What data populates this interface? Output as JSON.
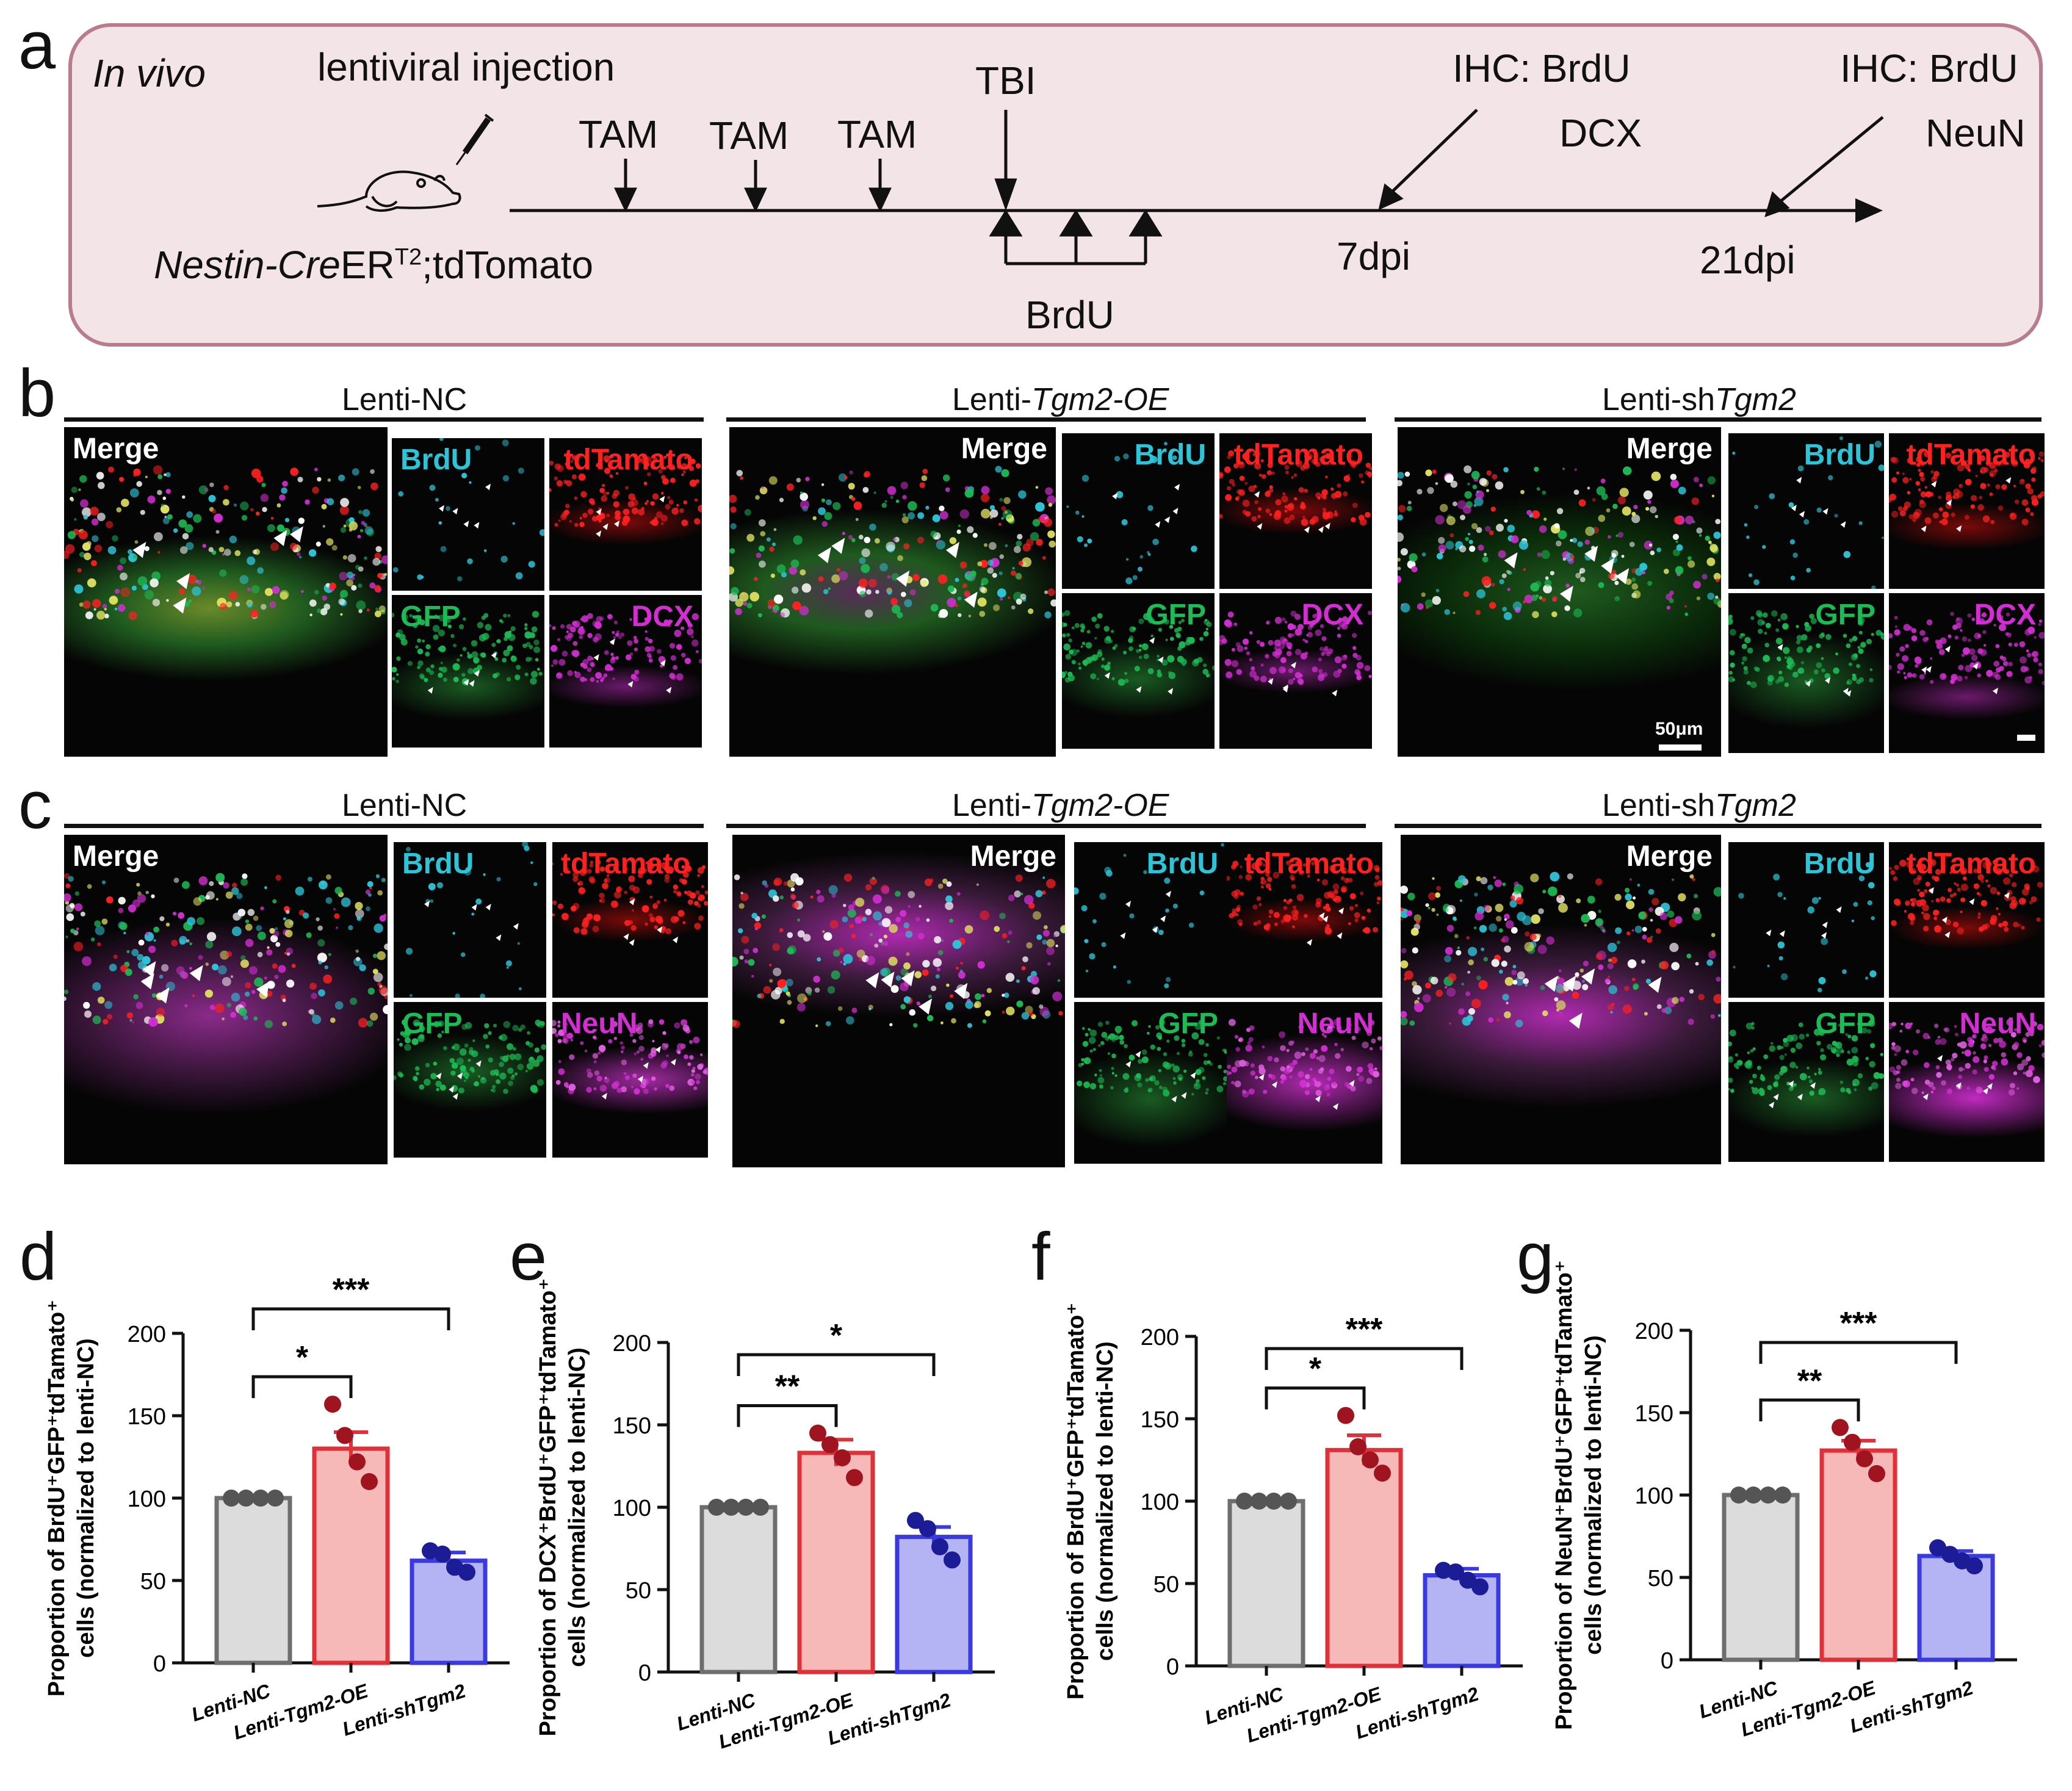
{
  "panel_labels": {
    "a": "a",
    "b": "b",
    "c": "c",
    "d": "d",
    "e": "e",
    "f": "f",
    "g": "g"
  },
  "timeline": {
    "in_vivo": "In vivo",
    "injection": "lentiviral injection",
    "tam": [
      "TAM",
      "TAM",
      "TAM"
    ],
    "tbi": "TBI",
    "ihc1_a": "IHC: BrdU",
    "ihc1_b": "DCX",
    "ihc2_a": "IHC: BrdU",
    "ihc2_b": "NeuN",
    "mouse_italic": "Nestin-Cre",
    "mouse_er": "ER",
    "mouse_sup": "T2",
    "mouse_rest": ";tdTomato",
    "brdu": "BrdU",
    "dpi7": "7dpi",
    "dpi21": "21dpi"
  },
  "groups": {
    "nc": "Lenti-NC",
    "oe_pre": "Lenti-",
    "oe_italic": "Tgm2-OE",
    "sh_pre": "Lenti-sh",
    "sh_italic": "Tgm2"
  },
  "channels": {
    "merge": "Merge",
    "brdu": "BrdU",
    "tdtomato": "tdTamato",
    "gfp": "GFP",
    "dcx": "DCX",
    "neun": "NeuN",
    "scale": "50μm"
  },
  "colors": {
    "nc_fill": "#dcdcdc",
    "nc_stroke": "#6e6e6e",
    "nc_dot": "#555555",
    "oe_fill": "#f7b8b8",
    "oe_stroke": "#e0303a",
    "oe_dot": "#a01420",
    "sh_fill": "#b4b4f4",
    "sh_stroke": "#3a3ae0",
    "sh_dot": "#1c1c96",
    "brdu": "#2ec4d8",
    "tdtomato": "#ff2020",
    "gfp": "#1dbb55",
    "dcx": "#d22ed2",
    "neun": "#d22ed2"
  },
  "chart_data": [
    {
      "panel": "d",
      "type": "bar",
      "categories": [
        "Lenti-NC",
        "Lenti-Tgm2-OE",
        "Lenti-shTgm2"
      ],
      "values": [
        100,
        130,
        62
      ],
      "sem": [
        0,
        10,
        5
      ],
      "points": [
        [
          100,
          100,
          100,
          100
        ],
        [
          157,
          138,
          122,
          110
        ],
        [
          68,
          66,
          58,
          55
        ]
      ],
      "ylabel": "Proportion of BrdU+GFP+tdTamato+ cells (normalized to lenti-NC)",
      "ylabel_line1": "Proportion of BrdU⁺GFP⁺tdTamato⁺",
      "ylabel_line2": "cells (normalized to lenti-NC)",
      "ylim": [
        0,
        200
      ],
      "yticks": [
        "0",
        "50",
        "100",
        "150",
        "200"
      ],
      "sig": [
        {
          "from": 0,
          "to": 1,
          "label": "*"
        },
        {
          "from": 0,
          "to": 2,
          "label": "***"
        }
      ]
    },
    {
      "panel": "e",
      "type": "bar",
      "categories": [
        "Lenti-NC",
        "Lenti-Tgm2-OE",
        "Lenti-shTgm2"
      ],
      "values": [
        100,
        133,
        82
      ],
      "sem": [
        0,
        8,
        6
      ],
      "points": [
        [
          100,
          100,
          100,
          100
        ],
        [
          145,
          138,
          130,
          118
        ],
        [
          92,
          87,
          76,
          68
        ]
      ],
      "ylabel": "Proportion of DCX+BrdU+GFP+tdTamato+ cells (normalized to lenti-NC)",
      "ylabel_line1": "Proportion of DCX⁺BrdU⁺GFP⁺tdTamato⁺",
      "ylabel_line2": "cells (normalized to lenti-NC)",
      "ylim": [
        0,
        200
      ],
      "yticks": [
        "0",
        "50",
        "100",
        "150",
        "200"
      ],
      "sig": [
        {
          "from": 0,
          "to": 1,
          "label": "**"
        },
        {
          "from": 0,
          "to": 2,
          "label": "*"
        }
      ]
    },
    {
      "panel": "f",
      "type": "bar",
      "categories": [
        "Lenti-NC",
        "Lenti-Tgm2-OE",
        "Lenti-shTgm2"
      ],
      "values": [
        100,
        131,
        55
      ],
      "sem": [
        0,
        9,
        4
      ],
      "points": [
        [
          100,
          100,
          100,
          100
        ],
        [
          152,
          133,
          125,
          117
        ],
        [
          58,
          57,
          52,
          48
        ]
      ],
      "ylabel": "Proportion of BrdU+GFP+tdTamato+ cells (normalized to lenti-NC)",
      "ylabel_line1": "Proportion of BrdU⁺GFP⁺tdTamato⁺",
      "ylabel_line2": "cells (normalized to lenti-NC)",
      "ylim": [
        0,
        200
      ],
      "yticks": [
        "0",
        "50",
        "100",
        "150",
        "200"
      ],
      "sig": [
        {
          "from": 0,
          "to": 1,
          "label": "*"
        },
        {
          "from": 0,
          "to": 2,
          "label": "***"
        }
      ]
    },
    {
      "panel": "g",
      "type": "bar",
      "categories": [
        "Lenti-NC",
        "Lenti-Tgm2-OE",
        "Lenti-shTgm2"
      ],
      "values": [
        100,
        127,
        63
      ],
      "sem": [
        0,
        6,
        3
      ],
      "points": [
        [
          100,
          100,
          100,
          100
        ],
        [
          141,
          132,
          122,
          113
        ],
        [
          68,
          64,
          60,
          57
        ]
      ],
      "ylabel": "Proportion of NeuN+BrdU+GFP+tdTamato+ cells (normalized to lenti-NC)",
      "ylabel_line1": "Proportion of NeuN⁺BrdU⁺GFP⁺tdTamato⁺",
      "ylabel_line2": "cells (normalized to lenti-NC)",
      "ylim": [
        0,
        200
      ],
      "yticks": [
        "0",
        "50",
        "100",
        "150",
        "200"
      ],
      "sig": [
        {
          "from": 0,
          "to": 1,
          "label": "**"
        },
        {
          "from": 0,
          "to": 2,
          "label": "***"
        }
      ]
    }
  ]
}
